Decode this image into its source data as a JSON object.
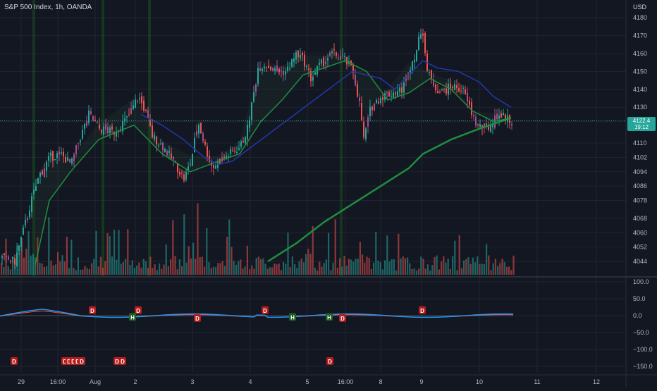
{
  "header": {
    "title": "S&P 500 Index, 1h, OANDA",
    "currency": "USD"
  },
  "price_tag": {
    "price": "4122.4",
    "countdown": "19:12"
  },
  "chart_data": [
    {
      "type": "candlestick",
      "title": "",
      "ylim": [
        4038,
        4186
      ],
      "y_ticks": [
        4180,
        4170,
        4160,
        4150,
        4140,
        4130,
        4122,
        4110,
        4102,
        4094,
        4086,
        4078,
        4068,
        4060,
        4052,
        4044
      ],
      "x_ticks": [
        "29",
        "16:00",
        "Aug",
        "2",
        "3",
        "4",
        "5",
        "16:00",
        "8",
        "9",
        "10",
        "11",
        "12"
      ],
      "current_price": 4122.4,
      "series": [
        {
          "name": "ma_fast",
          "color": "#1e8e3e",
          "values": [
            [
              50,
              4042
            ],
            [
              70,
              4078
            ],
            [
              100,
              4094
            ],
            [
              140,
              4112
            ],
            [
              190,
              4120
            ],
            [
              230,
              4104
            ],
            [
              270,
              4094
            ],
            [
              310,
              4100
            ],
            [
              340,
              4104
            ],
            [
              370,
              4122
            ],
            [
              400,
              4134
            ],
            [
              430,
              4148
            ],
            [
              460,
              4152
            ],
            [
              490,
              4156
            ],
            [
              520,
              4150
            ],
            [
              550,
              4134
            ],
            [
              580,
              4138
            ],
            [
              610,
              4146
            ],
            [
              640,
              4140
            ],
            [
              670,
              4128
            ],
            [
              700,
              4122
            ],
            [
              725,
              4124
            ]
          ]
        },
        {
          "name": "ma_slow",
          "color": "#1e8e3e",
          "values": [
            [
              380,
              4044
            ],
            [
              420,
              4054
            ],
            [
              460,
              4066
            ],
            [
              500,
              4076
            ],
            [
              540,
              4086
            ],
            [
              580,
              4096
            ],
            [
              600,
              4104
            ],
            [
              640,
              4112
            ],
            [
              680,
              4118
            ],
            [
              725,
              4124
            ]
          ]
        },
        {
          "name": "ma_blue",
          "color": "#2338a8",
          "values": [
            [
              200,
              4126
            ],
            [
              230,
              4120
            ],
            [
              260,
              4112
            ],
            [
              290,
              4102
            ],
            [
              310,
              4098
            ],
            [
              330,
              4100
            ],
            [
              500,
              4150
            ],
            [
              540,
              4146
            ],
            [
              560,
              4140
            ],
            [
              600,
              4156
            ],
            [
              620,
              4152
            ],
            [
              650,
              4150
            ],
            [
              680,
              4144
            ],
            [
              700,
              4136
            ],
            [
              725,
              4130
            ]
          ]
        }
      ]
    },
    {
      "type": "line",
      "title": "",
      "ylim": [
        -160,
        110
      ],
      "y_ticks": [
        100.0,
        50.0,
        0.0,
        -50.0,
        -100.0,
        -150.0
      ],
      "signals": [
        {
          "x": 131,
          "label": "D",
          "kind": "down"
        },
        {
          "x": 196,
          "label": "D",
          "kind": "down"
        },
        {
          "x": 188,
          "label": "H",
          "kind": "up"
        },
        {
          "x": 280,
          "label": "D",
          "kind": "down"
        },
        {
          "x": 376,
          "label": "D",
          "kind": "down"
        },
        {
          "x": 415,
          "label": "H",
          "kind": "up"
        },
        {
          "x": 467,
          "label": "H",
          "kind": "up"
        },
        {
          "x": 486,
          "label": "D",
          "kind": "down"
        },
        {
          "x": 599,
          "label": "D",
          "kind": "down"
        }
      ],
      "bottom_signals": [
        {
          "x": 20,
          "label": "D"
        },
        {
          "x": 92,
          "label": "D"
        },
        {
          "x": 98,
          "label": "D"
        },
        {
          "x": 104,
          "label": "D"
        },
        {
          "x": 110,
          "label": "D"
        },
        {
          "x": 116,
          "label": "D"
        },
        {
          "x": 166,
          "label": "D"
        },
        {
          "x": 174,
          "label": "D"
        },
        {
          "x": 468,
          "label": "D"
        }
      ]
    }
  ],
  "colors": {
    "up": "#26a69a",
    "down": "#ef5350",
    "mixed": "#a64d8e",
    "grid": "#1f2430",
    "bg": "#131722"
  }
}
